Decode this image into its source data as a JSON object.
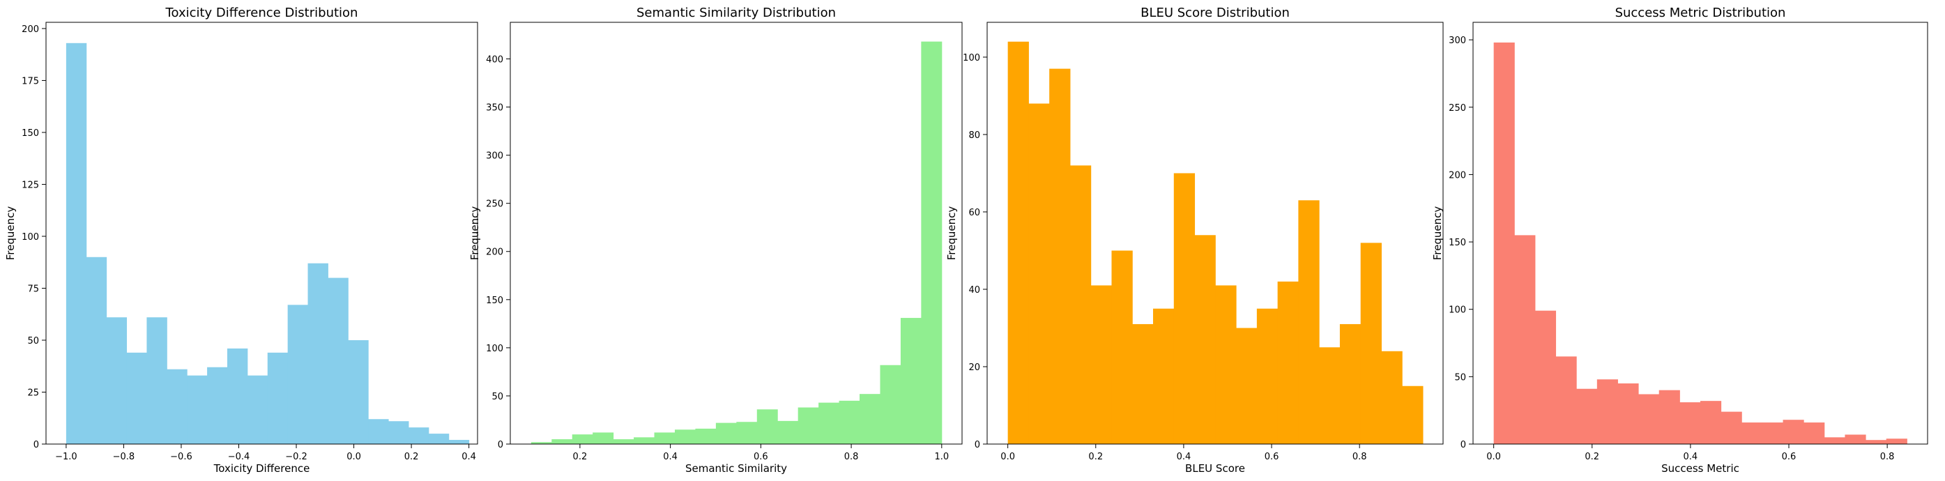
{
  "chart_data": [
    {
      "type": "bar",
      "title": "Toxicity Difference Distribution",
      "xlabel": "Toxicity Difference",
      "ylabel": "Frequency",
      "color": "#87ceeb",
      "xlim": [
        -1.07,
        0.43
      ],
      "ylim": [
        0,
        203
      ],
      "xticks": [
        -1.0,
        -0.8,
        -0.6,
        -0.4,
        -0.2,
        0.0,
        0.2,
        0.4
      ],
      "xtick_labels": [
        "−1.0",
        "−0.8",
        "−0.6",
        "−0.4",
        "−0.2",
        "0.0",
        "0.2",
        "0.4"
      ],
      "yticks": [
        0,
        25,
        50,
        75,
        100,
        125,
        150,
        175,
        200
      ],
      "bin_start": -1.0,
      "bin_width": 0.07,
      "values": [
        193,
        90,
        61,
        44,
        61,
        36,
        33,
        37,
        46,
        33,
        44,
        67,
        87,
        80,
        50,
        12,
        11,
        8,
        5,
        2
      ]
    },
    {
      "type": "bar",
      "title": "Semantic Similarity Distribution",
      "xlabel": "Semantic Similarity",
      "ylabel": "Frequency",
      "color": "#90ee90",
      "xlim": [
        0.046,
        1.045
      ],
      "ylim": [
        0,
        438
      ],
      "xticks": [
        0.2,
        0.4,
        0.6,
        0.8,
        1.0
      ],
      "xtick_labels": [
        "0.2",
        "0.4",
        "0.6",
        "0.8",
        "1.0"
      ],
      "yticks": [
        0,
        50,
        100,
        150,
        200,
        250,
        300,
        350,
        400
      ],
      "bin_start": 0.092,
      "bin_width": 0.0454,
      "values": [
        2,
        5,
        10,
        12,
        5,
        7,
        12,
        15,
        16,
        22,
        23,
        36,
        24,
        38,
        43,
        45,
        52,
        82,
        131,
        418
      ]
    },
    {
      "type": "bar",
      "title": "BLEU Score Distribution",
      "xlabel": "BLEU Score",
      "ylabel": "Frequency",
      "color": "#ffa500",
      "xlim": [
        -0.047,
        0.99
      ],
      "ylim": [
        0,
        109
      ],
      "xticks": [
        0.0,
        0.2,
        0.4,
        0.6,
        0.8
      ],
      "xtick_labels": [
        "0.0",
        "0.2",
        "0.4",
        "0.6",
        "0.8"
      ],
      "yticks": [
        0,
        20,
        40,
        60,
        80,
        100
      ],
      "bin_start": 0.0,
      "bin_width": 0.0472,
      "values": [
        104,
        88,
        97,
        72,
        41,
        50,
        31,
        35,
        70,
        54,
        41,
        30,
        35,
        42,
        63,
        25,
        31,
        52,
        24,
        15
      ]
    },
    {
      "type": "bar",
      "title": "Success Metric Distribution",
      "xlabel": "Success Metric",
      "ylabel": "Frequency",
      "color": "#fa8072",
      "xlim": [
        -0.042,
        0.882
      ],
      "ylim": [
        0,
        313
      ],
      "xticks": [
        0.0,
        0.2,
        0.4,
        0.6,
        0.8
      ],
      "xtick_labels": [
        "0.0",
        "0.2",
        "0.4",
        "0.6",
        "0.8"
      ],
      "yticks": [
        0,
        50,
        100,
        150,
        200,
        250,
        300
      ],
      "bin_start": 0.0,
      "bin_width": 0.042,
      "values": [
        298,
        155,
        99,
        65,
        41,
        48,
        45,
        37,
        40,
        31,
        32,
        24,
        16,
        16,
        18,
        16,
        5,
        7,
        3,
        4
      ]
    }
  ]
}
